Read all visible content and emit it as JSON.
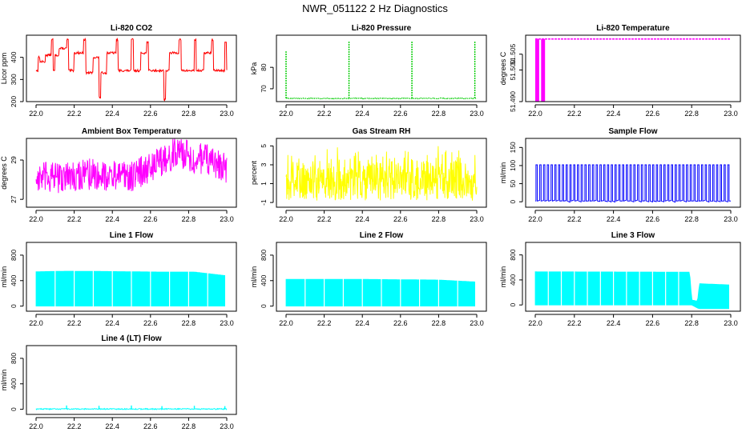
{
  "page_title": "NWR_051122  2 Hz Diagnostics",
  "colors": {
    "red": "#ff0000",
    "green": "#00cc00",
    "magenta": "#ff00ff",
    "yellow": "#ffff00",
    "blue": "#0000ff",
    "cyan": "#00ffff"
  },
  "chart_data": [
    {
      "type": "line",
      "title": "Li-820 CO2",
      "ylabel": "Licor ppm",
      "xlabel": "",
      "xlim": [
        22.0,
        23.0
      ],
      "ylim": [
        200,
        500
      ],
      "x_ticks": [
        "22.0",
        "22.2",
        "22.4",
        "22.6",
        "22.8",
        "23.0"
      ],
      "y_ticks": [
        "200",
        "300",
        "400"
      ],
      "color": "red",
      "series": [
        {
          "name": "CO2",
          "pattern": "step_cycle",
          "x": [
            22.0,
            22.01,
            22.02,
            22.05,
            22.08,
            22.09,
            22.1,
            22.12,
            22.16,
            22.17,
            22.2,
            22.25,
            22.26,
            22.3,
            22.33,
            22.34,
            22.37,
            22.42,
            22.43,
            22.5,
            22.51,
            22.55,
            22.58,
            22.59,
            22.67,
            22.68,
            22.7,
            22.75,
            22.76,
            22.83,
            22.84,
            22.88,
            22.92,
            22.93,
            22.99,
            23.0
          ],
          "values": [
            340,
            400,
            380,
            410,
            480,
            340,
            410,
            440,
            480,
            340,
            420,
            480,
            330,
            400,
            220,
            330,
            420,
            480,
            340,
            480,
            340,
            420,
            470,
            340,
            210,
            340,
            420,
            480,
            340,
            480,
            340,
            420,
            480,
            340,
            470,
            340
          ]
        }
      ]
    },
    {
      "type": "line",
      "title": "Li-820 Pressure",
      "ylabel": "kPa",
      "xlabel": "",
      "xlim": [
        22.0,
        23.0
      ],
      "ylim": [
        64,
        95
      ],
      "x_ticks": [
        "22.0",
        "22.2",
        "22.4",
        "22.6",
        "22.8",
        "23.0"
      ],
      "y_ticks": [
        "70",
        "80"
      ],
      "color": "green",
      "series": [
        {
          "name": "Pressure",
          "pattern": "baseline_spikes",
          "baseline": 65.5,
          "x": [
            22.0,
            22.33,
            22.66,
            22.99
          ],
          "values": [
            87.5,
            92,
            92,
            92
          ]
        }
      ]
    },
    {
      "type": "line",
      "title": "Li-820 Temperature",
      "ylabel": "degrees C",
      "xlabel": "",
      "xlim": [
        22.0,
        23.0
      ],
      "ylim": [
        51.49,
        51.511
      ],
      "x_ticks": [
        "22.0",
        "22.2",
        "22.4",
        "22.6",
        "22.8",
        "23.0"
      ],
      "y_ticks": [
        "51.490",
        "51.500",
        "51.505"
      ],
      "color": "magenta",
      "series": [
        {
          "name": "Temperature",
          "pattern": "flat_with_early_blocks",
          "level": 51.5098,
          "x": [
            22.0,
            22.02,
            22.03,
            22.05,
            22.06
          ],
          "values": [
            51.49,
            51.5098,
            51.49,
            51.5098,
            51.49
          ]
        }
      ]
    },
    {
      "type": "line",
      "title": "Ambient Box Temperature",
      "ylabel": "degrees C",
      "xlabel": "",
      "xlim": [
        22.0,
        23.0
      ],
      "ylim": [
        26.6,
        30.1
      ],
      "x_ticks": [
        "22.0",
        "22.2",
        "22.4",
        "22.6",
        "22.8",
        "23.0"
      ],
      "y_ticks": [
        "27",
        "29"
      ],
      "color": "magenta",
      "series": [
        {
          "name": "Box temperature",
          "pattern": "noisy_band",
          "x": [
            22.0,
            22.1,
            22.2,
            22.3,
            22.4,
            22.5,
            22.6,
            22.7,
            22.75,
            22.8,
            22.9,
            23.0
          ],
          "values": [
            28.1,
            28.1,
            28.2,
            28.3,
            28.2,
            28.2,
            28.6,
            29.2,
            29.4,
            29.2,
            29.0,
            28.6
          ],
          "spread": 0.8
        }
      ]
    },
    {
      "type": "line",
      "title": "Gas Stream RH",
      "ylabel": "percent",
      "xlabel": "",
      "xlim": [
        22.0,
        23.0
      ],
      "ylim": [
        -1.5,
        5.8
      ],
      "x_ticks": [
        "22.0",
        "22.2",
        "22.4",
        "22.6",
        "22.8",
        "23.0"
      ],
      "y_ticks": [
        "-1",
        "1",
        "3",
        "5"
      ],
      "color": "yellow",
      "series": [
        {
          "name": "RH",
          "pattern": "noisy_band",
          "x": [
            22.0,
            22.5,
            23.0
          ],
          "values": [
            1.0,
            1.0,
            1.0
          ],
          "lower": -0.8,
          "upper": 5.2
        }
      ]
    },
    {
      "type": "line",
      "title": "Sample Flow",
      "ylabel": "ml/min",
      "xlabel": "",
      "xlim": [
        22.0,
        23.0
      ],
      "ylim": [
        -15,
        175
      ],
      "x_ticks": [
        "22.0",
        "22.2",
        "22.4",
        "22.6",
        "22.8",
        "23.0"
      ],
      "y_ticks": [
        "0",
        "50",
        "100",
        "150"
      ],
      "color": "blue",
      "series": [
        {
          "name": "Sample flow",
          "pattern": "pulse_train",
          "baseline": 2,
          "pulse_level": 102,
          "pulse_count": 52
        }
      ]
    },
    {
      "type": "area",
      "title": "Line 1 Flow",
      "ylabel": "ml/min",
      "xlabel": "",
      "xlim": [
        22.0,
        23.0
      ],
      "ylim": [
        -80,
        1000
      ],
      "x_ticks": [
        "22.0",
        "22.2",
        "22.4",
        "22.6",
        "22.8",
        "23.0"
      ],
      "y_ticks": [
        "0",
        "400",
        "800"
      ],
      "color": "cyan",
      "series": [
        {
          "name": "Line 1",
          "pattern": "filled_band",
          "x": [
            22.0,
            22.16,
            22.33,
            22.5,
            22.66,
            22.83,
            22.99
          ],
          "lower": 0,
          "upper": [
            540,
            548,
            545,
            540,
            535,
            535,
            480
          ]
        }
      ]
    },
    {
      "type": "area",
      "title": "Line 2 Flow",
      "ylabel": "ml/min",
      "xlabel": "",
      "xlim": [
        22.0,
        23.0
      ],
      "ylim": [
        -80,
        1000
      ],
      "x_ticks": [
        "22.0",
        "22.2",
        "22.4",
        "22.6",
        "22.8",
        "23.0"
      ],
      "y_ticks": [
        "0",
        "400",
        "800"
      ],
      "color": "cyan",
      "series": [
        {
          "name": "Line 2",
          "pattern": "filled_band",
          "x": [
            22.0,
            22.2,
            22.4,
            22.6,
            22.8,
            22.99
          ],
          "lower": 0,
          "upper": [
            420,
            420,
            420,
            415,
            410,
            380
          ]
        }
      ]
    },
    {
      "type": "area",
      "title": "Line 3 Flow",
      "ylabel": "ml/min",
      "xlabel": "",
      "xlim": [
        22.0,
        23.0
      ],
      "ylim": [
        -100,
        1000
      ],
      "x_ticks": [
        "22.0",
        "22.2",
        "22.4",
        "22.6",
        "22.8",
        "23.0"
      ],
      "y_ticks": [
        "0",
        "400",
        "800"
      ],
      "color": "cyan",
      "series": [
        {
          "name": "Line 3",
          "pattern": "filled_band",
          "x": [
            22.0,
            22.79,
            22.8,
            22.83,
            22.84,
            23.0
          ],
          "lower": [
            0,
            0,
            0,
            -50,
            -60,
            -60
          ],
          "upper": [
            530,
            525,
            80,
            60,
            340,
            320
          ]
        }
      ]
    },
    {
      "type": "line",
      "title": "Line 4 (LT) Flow",
      "ylabel": "ml/min",
      "xlabel": "",
      "xlim": [
        22.0,
        23.0
      ],
      "ylim": [
        -80,
        1000
      ],
      "x_ticks": [
        "22.0",
        "22.2",
        "22.4",
        "22.6",
        "22.8",
        "23.0"
      ],
      "y_ticks": [
        "0",
        "400",
        "800"
      ],
      "color": "cyan",
      "series": [
        {
          "name": "Line 4",
          "pattern": "baseline_spikes",
          "baseline": 5,
          "x": [
            22.16,
            22.33,
            22.5,
            22.66,
            22.83,
            22.99
          ],
          "values": [
            60,
            55,
            60,
            50,
            55,
            50
          ]
        }
      ]
    }
  ]
}
